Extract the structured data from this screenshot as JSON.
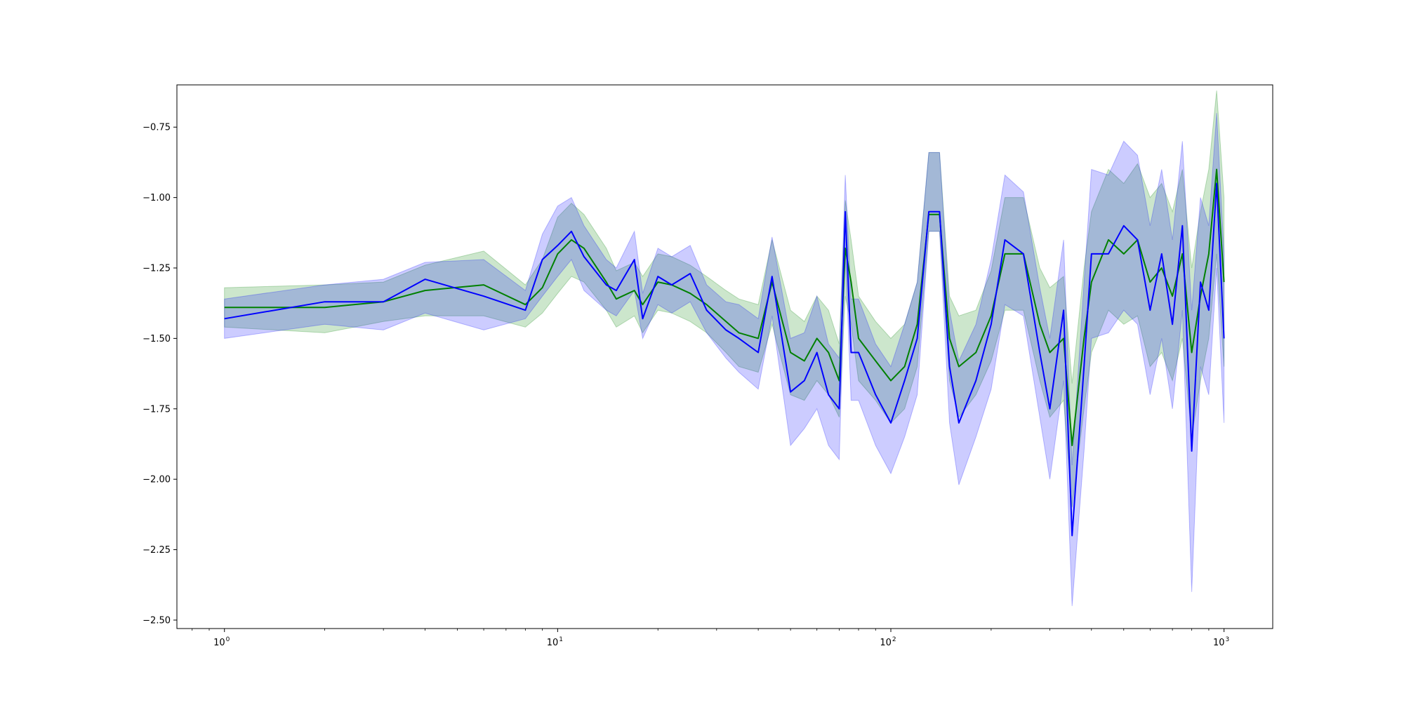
{
  "chart_data": {
    "type": "line",
    "title": "",
    "xlabel": "",
    "ylabel": "",
    "xscale": "log",
    "xlim": [
      0.72,
      1400
    ],
    "ylim": [
      -2.53,
      -0.6
    ],
    "grid": false,
    "x_ticks": [
      {
        "value": 1,
        "base": "10",
        "exp": "0"
      },
      {
        "value": 10,
        "base": "10",
        "exp": "1"
      },
      {
        "value": 100,
        "base": "10",
        "exp": "2"
      },
      {
        "value": 1000,
        "base": "10",
        "exp": "3"
      }
    ],
    "y_ticks": [
      {
        "value": -0.75,
        "label": "−0.75"
      },
      {
        "value": -1.0,
        "label": "−1.00"
      },
      {
        "value": -1.25,
        "label": "−1.25"
      },
      {
        "value": -1.5,
        "label": "−1.50"
      },
      {
        "value": -1.75,
        "label": "−1.75"
      },
      {
        "value": -2.0,
        "label": "−2.00"
      },
      {
        "value": -2.25,
        "label": "−2.25"
      },
      {
        "value": -2.5,
        "label": "−2.50"
      }
    ],
    "series": [
      {
        "color": "#008000",
        "band_color": "#008000",
        "x": [
          1,
          2,
          3,
          4,
          6,
          8,
          9,
          10,
          11,
          12,
          14,
          15,
          17,
          18,
          20,
          22,
          25,
          28,
          32,
          35,
          40,
          44,
          50,
          55,
          60,
          65,
          70,
          73,
          76,
          80,
          90,
          100,
          110,
          120,
          130,
          140,
          150,
          160,
          180,
          200,
          220,
          250,
          280,
          300,
          330,
          350,
          380,
          400,
          450,
          500,
          550,
          600,
          650,
          700,
          750,
          800,
          850,
          900,
          950,
          1000
        ],
        "y": [
          -1.39,
          -1.39,
          -1.37,
          -1.33,
          -1.31,
          -1.38,
          -1.32,
          -1.2,
          -1.15,
          -1.18,
          -1.3,
          -1.36,
          -1.33,
          -1.38,
          -1.3,
          -1.31,
          -1.34,
          -1.38,
          -1.44,
          -1.48,
          -1.5,
          -1.3,
          -1.55,
          -1.58,
          -1.5,
          -1.55,
          -1.65,
          -1.18,
          -1.3,
          -1.5,
          -1.58,
          -1.65,
          -1.6,
          -1.45,
          -1.06,
          -1.06,
          -1.5,
          -1.6,
          -1.55,
          -1.42,
          -1.2,
          -1.2,
          -1.45,
          -1.55,
          -1.5,
          -1.88,
          -1.5,
          -1.3,
          -1.15,
          -1.2,
          -1.15,
          -1.3,
          -1.25,
          -1.35,
          -1.2,
          -1.55,
          -1.35,
          -1.2,
          -0.9,
          -1.3
        ],
        "low": [
          -1.46,
          -1.48,
          -1.44,
          -1.42,
          -1.42,
          -1.46,
          -1.41,
          -1.34,
          -1.28,
          -1.3,
          -1.4,
          -1.46,
          -1.42,
          -1.48,
          -1.4,
          -1.41,
          -1.44,
          -1.48,
          -1.55,
          -1.6,
          -1.62,
          -1.45,
          -1.7,
          -1.72,
          -1.65,
          -1.7,
          -1.78,
          -1.35,
          -1.45,
          -1.65,
          -1.72,
          -1.8,
          -1.75,
          -1.6,
          -1.12,
          -1.12,
          -1.65,
          -1.78,
          -1.7,
          -1.58,
          -1.4,
          -1.4,
          -1.65,
          -1.78,
          -1.72,
          -2.1,
          -1.75,
          -1.55,
          -1.4,
          -1.45,
          -1.42,
          -1.6,
          -1.55,
          -1.65,
          -1.5,
          -1.85,
          -1.65,
          -1.5,
          -1.2,
          -1.6
        ],
        "high": [
          -1.32,
          -1.31,
          -1.3,
          -1.24,
          -1.19,
          -1.31,
          -1.22,
          -1.07,
          -1.02,
          -1.06,
          -1.18,
          -1.26,
          -1.23,
          -1.28,
          -1.2,
          -1.21,
          -1.24,
          -1.28,
          -1.33,
          -1.36,
          -1.38,
          -1.15,
          -1.4,
          -1.44,
          -1.35,
          -1.4,
          -1.52,
          -1.01,
          -1.15,
          -1.35,
          -1.44,
          -1.5,
          -1.45,
          -1.3,
          -0.84,
          -0.84,
          -1.35,
          -1.42,
          -1.4,
          -1.26,
          -1.0,
          -1.0,
          -1.25,
          -1.32,
          -1.28,
          -1.66,
          -1.25,
          -1.05,
          -0.9,
          -0.95,
          -0.88,
          -1.0,
          -0.95,
          -1.05,
          -0.9,
          -1.25,
          -1.05,
          -0.9,
          -0.62,
          -1.0
        ]
      },
      {
        "color": "#0000ff",
        "band_color": "#0000ff",
        "x": [
          1,
          2,
          3,
          4,
          6,
          8,
          9,
          10,
          11,
          12,
          14,
          15,
          17,
          18,
          20,
          22,
          25,
          28,
          32,
          35,
          40,
          44,
          50,
          55,
          60,
          65,
          70,
          73,
          76,
          80,
          90,
          100,
          110,
          120,
          130,
          140,
          150,
          160,
          180,
          200,
          220,
          250,
          280,
          300,
          330,
          350,
          380,
          400,
          450,
          500,
          550,
          600,
          650,
          700,
          750,
          800,
          850,
          900,
          950,
          1000
        ],
        "y": [
          -1.43,
          -1.37,
          -1.37,
          -1.29,
          -1.35,
          -1.4,
          -1.22,
          -1.17,
          -1.12,
          -1.21,
          -1.31,
          -1.33,
          -1.22,
          -1.43,
          -1.28,
          -1.31,
          -1.27,
          -1.4,
          -1.47,
          -1.5,
          -1.55,
          -1.28,
          -1.69,
          -1.65,
          -1.55,
          -1.7,
          -1.75,
          -1.05,
          -1.55,
          -1.55,
          -1.7,
          -1.8,
          -1.65,
          -1.5,
          -1.05,
          -1.05,
          -1.6,
          -1.8,
          -1.65,
          -1.45,
          -1.15,
          -1.2,
          -1.55,
          -1.75,
          -1.4,
          -2.2,
          -1.6,
          -1.2,
          -1.2,
          -1.1,
          -1.15,
          -1.4,
          -1.2,
          -1.45,
          -1.1,
          -1.9,
          -1.3,
          -1.4,
          -0.95,
          -1.5
        ],
        "low": [
          -1.5,
          -1.45,
          -1.47,
          -1.41,
          -1.47,
          -1.43,
          -1.35,
          -1.28,
          -1.22,
          -1.33,
          -1.4,
          -1.42,
          -1.33,
          -1.5,
          -1.38,
          -1.41,
          -1.37,
          -1.48,
          -1.57,
          -1.62,
          -1.68,
          -1.42,
          -1.88,
          -1.82,
          -1.75,
          -1.88,
          -1.93,
          -1.2,
          -1.72,
          -1.72,
          -1.88,
          -1.98,
          -1.85,
          -1.7,
          -1.12,
          -1.12,
          -1.8,
          -2.02,
          -1.85,
          -1.68,
          -1.38,
          -1.42,
          -1.78,
          -2.0,
          -1.65,
          -2.45,
          -1.9,
          -1.5,
          -1.48,
          -1.4,
          -1.45,
          -1.7,
          -1.5,
          -1.75,
          -1.4,
          -2.4,
          -1.6,
          -1.7,
          -1.25,
          -1.8
        ],
        "high": [
          -1.36,
          -1.31,
          -1.29,
          -1.23,
          -1.22,
          -1.33,
          -1.13,
          -1.03,
          -1.0,
          -1.1,
          -1.22,
          -1.25,
          -1.12,
          -1.34,
          -1.18,
          -1.21,
          -1.17,
          -1.31,
          -1.37,
          -1.38,
          -1.43,
          -1.14,
          -1.5,
          -1.48,
          -1.35,
          -1.52,
          -1.57,
          -0.92,
          -1.36,
          -1.36,
          -1.52,
          -1.6,
          -1.45,
          -1.3,
          -0.84,
          -0.84,
          -1.4,
          -1.58,
          -1.45,
          -1.22,
          -0.92,
          -0.98,
          -1.32,
          -1.5,
          -1.15,
          -1.95,
          -1.3,
          -0.9,
          -0.92,
          -0.8,
          -0.85,
          -1.1,
          -0.9,
          -1.15,
          -0.8,
          -1.4,
          -1.0,
          -1.1,
          -0.7,
          -1.2
        ]
      }
    ]
  }
}
